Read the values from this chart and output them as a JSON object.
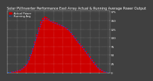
{
  "title": "Solar PV/Inverter Performance East Array Actual & Running Average Power Output",
  "background_color": "#404040",
  "plot_bg_color": "#404040",
  "grid_color": "#ffffff",
  "bar_color": "#cc0000",
  "line_color": "#0055ff",
  "bar_values": [
    0,
    0,
    2,
    3,
    4,
    6,
    8,
    12,
    18,
    25,
    35,
    52,
    70,
    90,
    110,
    130,
    148,
    158,
    162,
    160,
    155,
    150,
    148,
    145,
    143,
    140,
    138,
    135,
    132,
    128,
    122,
    115,
    108,
    100,
    92,
    85,
    78,
    70,
    62,
    54,
    46,
    38,
    30,
    22,
    15,
    10,
    6,
    3,
    1,
    0
  ],
  "avg_values": [
    0,
    0,
    1,
    2,
    3,
    5,
    6,
    10,
    15,
    22,
    32,
    48,
    65,
    84,
    102,
    120,
    138,
    150,
    156,
    155,
    152,
    148,
    145,
    142,
    140,
    138,
    136,
    133,
    130,
    125,
    120,
    113,
    105,
    97,
    89,
    82,
    75,
    67,
    59,
    51,
    43,
    35,
    27,
    20,
    13,
    8,
    5,
    2,
    1,
    0
  ],
  "ylim_max": 180,
  "ylim_min": 0,
  "n_bars": 50,
  "yticks": [
    0,
    25,
    50,
    75,
    100,
    125,
    150,
    175
  ],
  "ytick_labels": [
    "0",
    "25",
    "50",
    "75",
    "100",
    "125",
    "150",
    "175"
  ],
  "legend_bar": "Actual Power",
  "legend_line": "Running Avg",
  "title_fontsize": 3.5,
  "tick_fontsize": 3.0,
  "legend_fontsize": 2.8
}
